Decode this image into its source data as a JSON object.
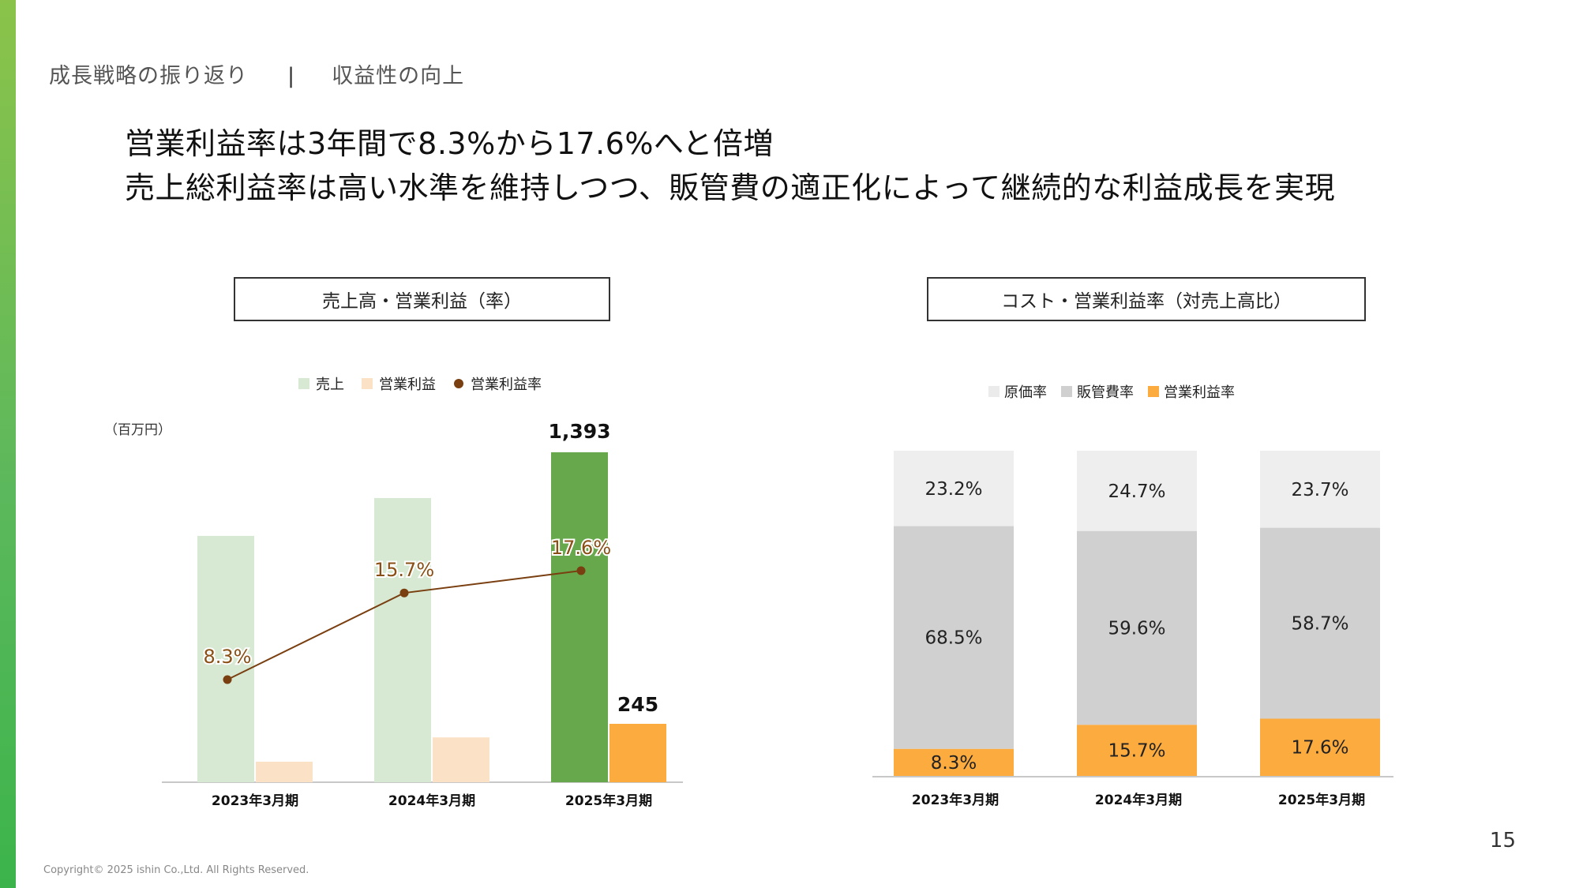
{
  "breadcrumb": {
    "section": "成長戦略の振り返り",
    "separator": "|",
    "topic": "収益性の向上"
  },
  "headline": {
    "line1": "営業利益率は3年間で8.3%から17.6%へと倍増",
    "line2": "売上総利益率は高い水準を維持しつつ、販管費の適正化によって継続的な利益成長を実現"
  },
  "left_panel": {
    "title": "売上高・営業利益（率）",
    "unit": "（百万円）"
  },
  "right_panel": {
    "title": "コスト・営業利益率（対売上高比）"
  },
  "colors": {
    "sales": "#d7e9d3",
    "sales_highlight": "#66a84b",
    "op_profit": "#fbe1c6",
    "op_profit_highlight": "#fcab3f",
    "rate_line": "#7a3f10",
    "cost": "#eeeeee",
    "sga": "#d1d0d1",
    "op_rate": "#fcab3f",
    "accent": "#5cb85c"
  },
  "chart_data": [
    {
      "type": "bar",
      "categories": [
        "2023年3月期",
        "2024年3月期",
        "2025年3月期"
      ],
      "series": [
        {
          "name": "売上",
          "values": [
            1040,
            1200,
            1393
          ],
          "labels": [
            "",
            "",
            "1,393"
          ]
        },
        {
          "name": "営業利益",
          "values": [
            86,
            188,
            245
          ],
          "labels": [
            "",
            "",
            "245"
          ]
        },
        {
          "name": "営業利益率",
          "type": "line",
          "values": [
            8.3,
            15.7,
            17.6
          ],
          "labels": [
            "8.3%",
            "15.7%",
            "17.6%"
          ]
        }
      ],
      "legend_position": "top-center"
    },
    {
      "type": "bar",
      "stacked": true,
      "categories": [
        "2023年3月期",
        "2024年3月期",
        "2025年3月期"
      ],
      "series": [
        {
          "name": "原価率",
          "values": [
            23.2,
            24.7,
            23.7
          ],
          "labels": [
            "23.2%",
            "24.7%",
            "23.7%"
          ]
        },
        {
          "name": "販管費率",
          "values": [
            68.5,
            59.6,
            58.7
          ],
          "labels": [
            "68.5%",
            "59.6%",
            "58.7%"
          ]
        },
        {
          "name": "営業利益率",
          "values": [
            8.3,
            15.7,
            17.6
          ],
          "labels": [
            "8.3%",
            "15.7%",
            "17.6%"
          ]
        }
      ],
      "ylim": [
        0,
        100
      ],
      "legend_position": "top-center"
    }
  ],
  "footer": {
    "copyright": "Copyright©  2025 ishin Co.,Ltd. All Rights Reserved.",
    "page_number": "15"
  }
}
